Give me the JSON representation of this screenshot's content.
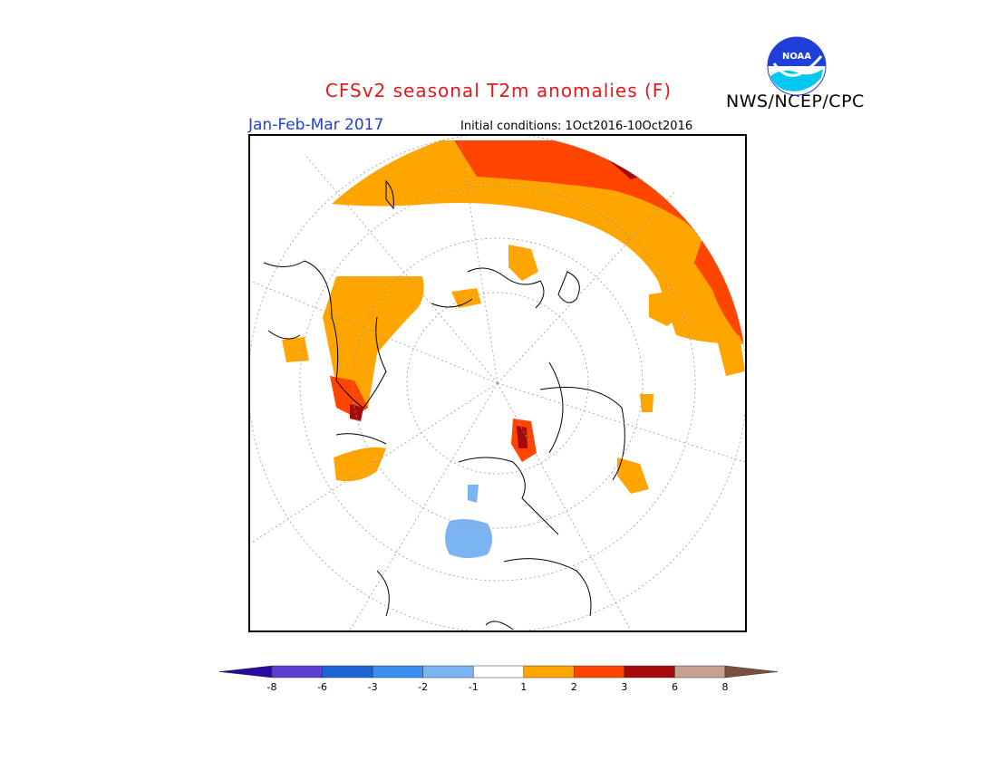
{
  "header": {
    "title": "CFSv2 seasonal T2m anomalies (F)",
    "title_color": "#e31a1c",
    "period": "Jan-Feb-Mar 2017",
    "period_color": "#1e3fd8",
    "initial_conditions": "Initial conditions: 1Oct2016-10Oct2016",
    "organization": "NWS/NCEP/CPC",
    "logo_text": "NOAA"
  },
  "map": {
    "projection": "north polar stereographic",
    "graticule": "dotted",
    "anomaly_colors": {
      "warm_1_2": "#ffa500",
      "warm_2_3": "#ff4500",
      "warm_3_6": "#a50a0a",
      "cool_1_2": "#7ab4f2"
    }
  },
  "colorbar": {
    "ticks": [
      "-8",
      "-6",
      "-3",
      "-2",
      "-1",
      "1",
      "2",
      "3",
      "6",
      "8"
    ],
    "bins": [
      {
        "color": "#2b0aa0"
      },
      {
        "color": "#5a3fd0"
      },
      {
        "color": "#1e64d2"
      },
      {
        "color": "#3a8ff0"
      },
      {
        "color": "#7ab4f2"
      },
      {
        "color": "#ffffff"
      },
      {
        "color": "#ffa500"
      },
      {
        "color": "#ff4500"
      },
      {
        "color": "#a50a0a"
      },
      {
        "color": "#c8a090"
      },
      {
        "color": "#7a5040"
      }
    ]
  }
}
